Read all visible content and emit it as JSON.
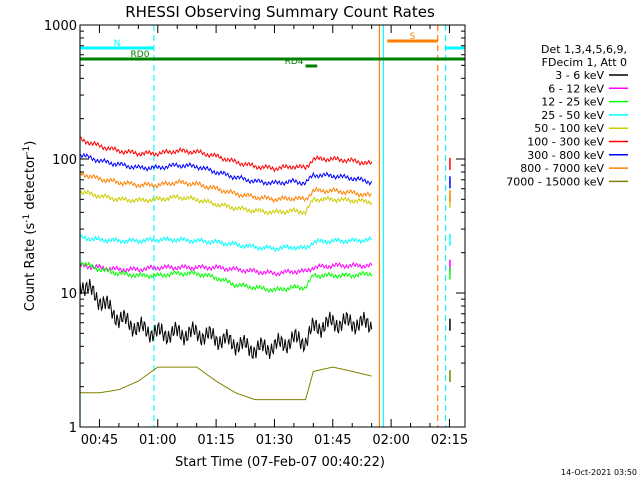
{
  "chart_data": {
    "type": "line",
    "title": "RHESSI Observing Summary Count Rates",
    "xlabel": "Start Time (07-Feb-07 00:40:22)",
    "ylabel_main": "Count Rate (s",
    "ylabel_sup1": "-1",
    "ylabel_mid": " detector",
    "ylabel_sup2": "-1",
    "ylabel_end": ")",
    "y_scale": "log",
    "ylim": [
      1,
      1000
    ],
    "xlim": [
      "00:40",
      "02:19"
    ],
    "x_ticks": [
      "00:45",
      "01:00",
      "01:15",
      "01:30",
      "01:45",
      "02:00",
      "02:15"
    ],
    "y_ticks": [
      "1",
      "10",
      "100",
      "1000"
    ],
    "legend_header": [
      "Det 1,3,4,5,6,9,",
      "FDecim 1, Att 0"
    ],
    "legend_placement": "right",
    "timestamp": "14-Oct-2021 03:50",
    "series": [
      {
        "name": "3 - 6 keV",
        "color": "#000000",
        "x": [
          "00:40",
          "00:45",
          "00:50",
          "00:55",
          "01:00",
          "01:05",
          "01:10",
          "01:15",
          "01:20",
          "01:25",
          "01:30",
          "01:35",
          "01:38",
          "01:40",
          "01:45",
          "01:50",
          "01:55"
        ],
        "values": [
          12,
          9,
          6.5,
          5.5,
          5,
          5,
          5,
          4.6,
          4.2,
          3.8,
          4,
          4.5,
          4.4,
          5.5,
          6,
          6,
          5.8
        ]
      },
      {
        "name": "6 - 12 keV",
        "color": "#ff00ff",
        "x": [
          "00:40",
          "00:45",
          "00:50",
          "00:55",
          "01:00",
          "01:05",
          "01:10",
          "01:15",
          "01:20",
          "01:25",
          "01:30",
          "01:35",
          "01:38",
          "01:40",
          "01:45",
          "01:50",
          "01:55"
        ],
        "values": [
          16,
          15.5,
          15,
          15,
          15.5,
          15.5,
          15.5,
          15.5,
          15,
          14.5,
          14,
          14.5,
          14.5,
          15.5,
          16,
          16,
          16
        ]
      },
      {
        "name": "12 - 25 keV",
        "color": "#00ff00",
        "x": [
          "00:40",
          "00:45",
          "00:50",
          "00:55",
          "01:00",
          "01:05",
          "01:10",
          "01:15",
          "01:20",
          "01:25",
          "01:30",
          "01:35",
          "01:38",
          "01:40",
          "01:45",
          "01:50",
          "01:55"
        ],
        "values": [
          17,
          15,
          14,
          13.5,
          13.5,
          14,
          14,
          13,
          11.5,
          11,
          10.5,
          11,
          11,
          13.5,
          13.5,
          13.5,
          14
        ]
      },
      {
        "name": "25 - 50 keV",
        "color": "#00ffff",
        "x": [
          "00:40",
          "00:45",
          "00:50",
          "00:55",
          "01:00",
          "01:05",
          "01:10",
          "01:15",
          "01:20",
          "01:25",
          "01:30",
          "01:35",
          "01:38",
          "01:40",
          "01:45",
          "01:50",
          "01:55"
        ],
        "values": [
          26,
          25,
          24.5,
          24.5,
          25,
          25,
          24.5,
          24,
          23,
          22,
          21.5,
          22,
          21.5,
          24,
          24.5,
          24.5,
          25
        ]
      },
      {
        "name": "50 - 100 keV",
        "color": "#cccc00",
        "x": [
          "00:40",
          "00:45",
          "00:50",
          "00:55",
          "01:00",
          "01:05",
          "01:10",
          "01:15",
          "01:20",
          "01:25",
          "01:30",
          "01:35",
          "01:38",
          "01:40",
          "01:45",
          "01:50",
          "01:55"
        ],
        "values": [
          57,
          53,
          50,
          49,
          50,
          52,
          50,
          46,
          43,
          41,
          40,
          41,
          40,
          50,
          50,
          49,
          48
        ]
      },
      {
        "name": "100 - 300 keV",
        "color": "#ff0000",
        "x": [
          "00:40",
          "00:45",
          "00:50",
          "00:55",
          "01:00",
          "01:05",
          "01:10",
          "01:15",
          "01:20",
          "01:25",
          "01:30",
          "01:35",
          "01:38",
          "01:40",
          "01:45",
          "01:50",
          "01:55"
        ],
        "values": [
          140,
          125,
          115,
          110,
          110,
          115,
          113,
          105,
          95,
          88,
          85,
          88,
          86,
          100,
          100,
          97,
          92
        ]
      },
      {
        "name": "300 - 800 keV",
        "color": "#0000ff",
        "x": [
          "00:40",
          "00:45",
          "00:50",
          "00:55",
          "01:00",
          "01:05",
          "01:10",
          "01:15",
          "01:20",
          "01:25",
          "01:30",
          "01:35",
          "01:38",
          "01:40",
          "01:45",
          "01:50",
          "01:55"
        ],
        "values": [
          108,
          97,
          91,
          86,
          86,
          90,
          88,
          80,
          73,
          68,
          66,
          68,
          66,
          76,
          75,
          72,
          67
        ]
      },
      {
        "name": "800 - 7000 keV",
        "color": "#ff8000",
        "x": [
          "00:40",
          "00:45",
          "00:50",
          "00:55",
          "01:00",
          "01:05",
          "01:10",
          "01:15",
          "01:20",
          "01:25",
          "01:30",
          "01:35",
          "01:38",
          "01:40",
          "01:45",
          "01:50",
          "01:55"
        ],
        "values": [
          78,
          71,
          67,
          64,
          64,
          67,
          65,
          60,
          55,
          52,
          50,
          51,
          50,
          58,
          58,
          56,
          53
        ]
      },
      {
        "name": "7000 - 15000 keV",
        "color": "#808000",
        "x": [
          "00:40",
          "00:45",
          "00:50",
          "00:55",
          "01:00",
          "01:05",
          "01:10",
          "01:15",
          "01:20",
          "01:25",
          "01:30",
          "01:35",
          "01:38",
          "01:40",
          "01:45",
          "01:50",
          "01:55"
        ],
        "values": [
          1.8,
          1.8,
          1.9,
          2.2,
          2.8,
          2.8,
          2.8,
          2.2,
          1.8,
          1.6,
          1.6,
          1.6,
          1.6,
          2.6,
          2.8,
          2.6,
          2.4
        ]
      }
    ],
    "flags": [
      {
        "label": "N",
        "color": "#00ffff",
        "start": "00:40",
        "end": "00:59"
      },
      {
        "label": "RD0",
        "color": "#008000",
        "start": "00:40",
        "end": "02:19"
      },
      {
        "label": "RD4",
        "color": "#008000",
        "start": "01:38",
        "end": "01:41"
      },
      {
        "label": "S",
        "color": "#ff8000",
        "start": "01:59",
        "end": "02:12"
      },
      {
        "label": "",
        "color": "#00ffff",
        "start": "02:14",
        "end": "02:19"
      }
    ],
    "vertical_markers": [
      {
        "time": "00:59",
        "color": "#00ffff",
        "style": "dashed"
      },
      {
        "time": "01:58",
        "color": "#00ffff",
        "style": "solid"
      },
      {
        "time": "01:57",
        "color": "#ff8000",
        "style": "solid"
      },
      {
        "time": "02:12",
        "color": "#ff8000",
        "style": "dashed"
      },
      {
        "time": "02:14",
        "color": "#00ffff",
        "style": "dashed"
      },
      {
        "time": "00:40",
        "color": "#00ffff",
        "style": "solid"
      }
    ],
    "data_gap": {
      "start": "01:56",
      "end": "02:15"
    },
    "grid": false
  }
}
